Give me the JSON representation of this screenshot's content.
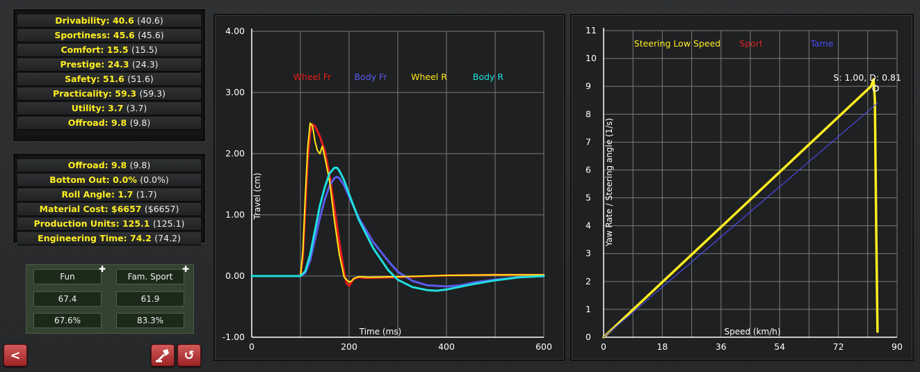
{
  "ratings": [
    {
      "label": "Drivability:",
      "value": "40.6",
      "prev": "(40.6)"
    },
    {
      "label": "Sportiness:",
      "value": "45.6",
      "prev": "(45.6)"
    },
    {
      "label": "Comfort:",
      "value": "15.5",
      "prev": "(15.5)"
    },
    {
      "label": "Prestige:",
      "value": "24.3",
      "prev": "(24.3)"
    },
    {
      "label": "Safety:",
      "value": "51.6",
      "prev": "(51.6)"
    },
    {
      "label": "Practicality:",
      "value": "59.3",
      "prev": "(59.3)"
    },
    {
      "label": "Utility:",
      "value": "3.7",
      "prev": "(3.7)"
    },
    {
      "label": "Offroad:",
      "value": "9.8",
      "prev": "(9.8)"
    }
  ],
  "stats": [
    {
      "label": "Offroad:",
      "value": "9.8",
      "prev": "(9.8)"
    },
    {
      "label": "Bottom Out:",
      "value": "0.0%",
      "prev": "(0.0%)"
    },
    {
      "label": "Roll Angle:",
      "value": "1.7",
      "prev": "(1.7)"
    },
    {
      "label": "Material Cost:",
      "value": "$6657",
      "prev": "($6657)"
    },
    {
      "label": "Production Units:",
      "value": "125.1",
      "prev": "(125.1)"
    },
    {
      "label": "Engineering Time:",
      "value": "74.2",
      "prev": "(74.2)"
    }
  ],
  "pinned": {
    "fun": {
      "label": "Fun",
      "value": "67.4",
      "percent": "67.6%"
    },
    "fam_sport": {
      "label": "Fam. Sport",
      "value": "61.9",
      "percent": "83.3%"
    }
  },
  "buttons": {
    "back": "<",
    "undo": "↺"
  },
  "icons": {
    "back": "chevron-left-icon",
    "scrap": "tool-icon",
    "undo": "undo-icon",
    "pin": "pin-icon"
  },
  "chart_data": [
    {
      "type": "line",
      "xlabel": "Time (ms)",
      "ylabel": "Travel (cm)",
      "xlim": [
        0,
        600
      ],
      "ylim": [
        -1.0,
        4.0
      ],
      "xticks": [
        "0",
        "200",
        "400",
        "600"
      ],
      "yticks": [
        "-1.00",
        "0.00",
        "1.00",
        "2.00",
        "3.00",
        "4.00"
      ],
      "grid": true,
      "legend_position": "top",
      "series": [
        {
          "name": "Wheel Fr",
          "color": "#e81c1c",
          "x": [
            0,
            100,
            105,
            110,
            115,
            120,
            125,
            130,
            140,
            150,
            160,
            170,
            180,
            190,
            195,
            200,
            205,
            210,
            220,
            230,
            250,
            300,
            400,
            500,
            600
          ],
          "y": [
            0,
            0,
            0.3,
            1.1,
            1.9,
            2.35,
            2.48,
            2.45,
            2.28,
            2.05,
            1.65,
            1.1,
            0.55,
            0.05,
            -0.12,
            -0.16,
            -0.1,
            -0.04,
            -0.02,
            -0.03,
            -0.03,
            -0.02,
            0.01,
            0.02,
            0.02
          ]
        },
        {
          "name": "Body Fr",
          "color": "#5a5aee",
          "x": [
            0,
            100,
            110,
            120,
            130,
            140,
            150,
            160,
            170,
            175,
            180,
            190,
            200,
            220,
            250,
            280,
            300,
            330,
            360,
            400,
            430,
            460,
            500,
            550,
            600
          ],
          "y": [
            0,
            0,
            0.05,
            0.25,
            0.6,
            0.95,
            1.25,
            1.48,
            1.6,
            1.62,
            1.6,
            1.48,
            1.3,
            0.95,
            0.55,
            0.25,
            0.07,
            -0.08,
            -0.15,
            -0.17,
            -0.15,
            -0.1,
            -0.06,
            -0.02,
            0
          ]
        },
        {
          "name": "Wheel R",
          "color": "#ffe81a",
          "x": [
            0,
            100,
            105,
            110,
            115,
            120,
            125,
            130,
            135,
            140,
            145,
            150,
            160,
            170,
            180,
            190,
            200,
            205,
            210,
            220,
            240,
            300,
            400,
            500,
            600
          ],
          "y": [
            0,
            0,
            0.4,
            1.3,
            2.1,
            2.5,
            2.45,
            2.2,
            2.05,
            2.0,
            2.12,
            1.95,
            1.55,
            0.9,
            0.35,
            -0.02,
            -0.1,
            -0.08,
            -0.04,
            -0.01,
            -0.02,
            -0.01,
            0.01,
            0.02,
            0.02
          ]
        },
        {
          "name": "Body R",
          "color": "#1ee0e0",
          "x": [
            0,
            100,
            110,
            120,
            130,
            140,
            150,
            160,
            170,
            175,
            180,
            190,
            200,
            220,
            250,
            280,
            300,
            330,
            360,
            380,
            400,
            450,
            500,
            550,
            600
          ],
          "y": [
            0,
            0,
            0.08,
            0.35,
            0.75,
            1.15,
            1.45,
            1.68,
            1.77,
            1.77,
            1.72,
            1.56,
            1.34,
            0.92,
            0.45,
            0.1,
            -0.06,
            -0.18,
            -0.23,
            -0.24,
            -0.22,
            -0.14,
            -0.07,
            -0.02,
            0
          ]
        }
      ]
    },
    {
      "type": "line",
      "xlabel": "Speed (km/h)",
      "ylabel": "Yaw Rate / Steering angle (1/s)",
      "xlim": [
        0,
        90
      ],
      "ylim": [
        0,
        11
      ],
      "xticks": [
        "0",
        "18",
        "36",
        "54",
        "72",
        "90"
      ],
      "yticks": [
        "0",
        "1",
        "2",
        "3",
        "4",
        "5",
        "6",
        "7",
        "8",
        "9",
        "10",
        "11"
      ],
      "grid": true,
      "legend_position": "top",
      "annotation": {
        "text": "S: 1.00, D: 0.81",
        "x": 83,
        "y": 9.0
      },
      "series": [
        {
          "name": "Steering Low Speed",
          "color": "#ffee22",
          "x": [
            0,
            82,
            82.8,
            83.2,
            83.6,
            84.0
          ],
          "y": [
            0,
            9.0,
            9.25,
            8.5,
            4.0,
            0.2
          ]
        },
        {
          "name": "Sport",
          "color": "#dd2222",
          "x": [],
          "y": []
        },
        {
          "name": "Tame",
          "color": "#4a4aee",
          "x": [
            0,
            84
          ],
          "y": [
            0,
            8.4
          ]
        }
      ]
    }
  ]
}
